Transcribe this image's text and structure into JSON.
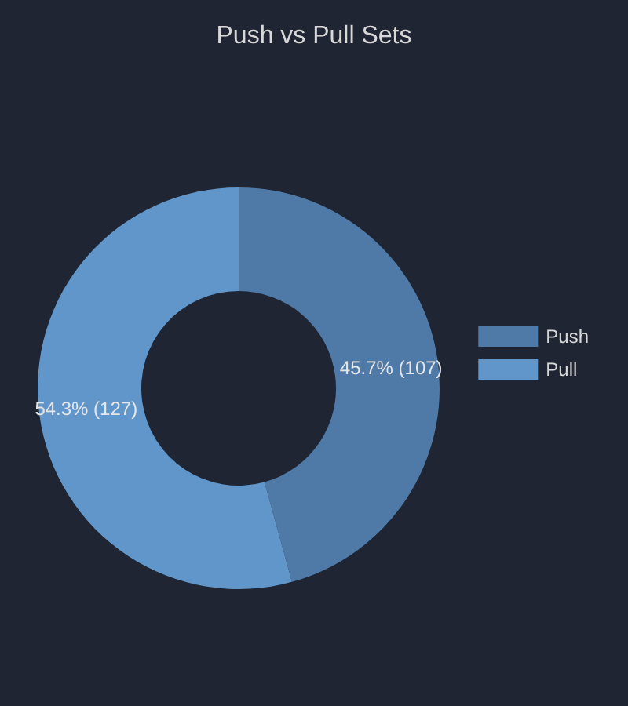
{
  "chart_data": {
    "type": "donut",
    "title": "Push vs Pull Sets",
    "categories": [
      "Push",
      "Pull"
    ],
    "values": [
      107,
      127
    ],
    "colors": [
      "#4f7aa8",
      "#6096c9"
    ],
    "value_labels": [
      "45.7% (107)",
      "54.3% (127)"
    ],
    "legend": "right"
  }
}
